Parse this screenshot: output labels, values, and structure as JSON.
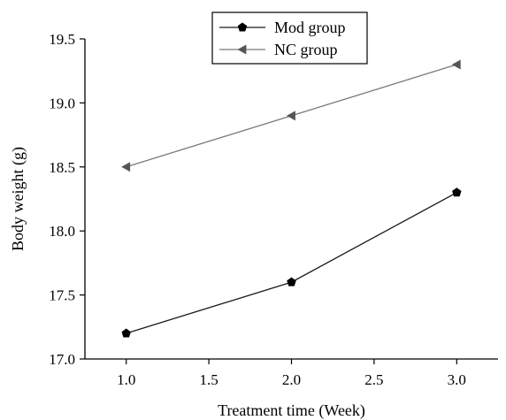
{
  "chart_data": {
    "type": "line",
    "title": "",
    "xlabel": "Treatment time  (Week)",
    "ylabel": "Body weight (g)",
    "x": [
      1.0,
      2.0,
      3.0
    ],
    "xlim": [
      0.75,
      3.25
    ],
    "ylim": [
      17.0,
      19.5
    ],
    "xticks": [
      "1.0",
      "1.5",
      "2.0",
      "2.5",
      "3.0"
    ],
    "yticks": [
      "17.0",
      "17.5",
      "18.0",
      "18.5",
      "19.0",
      "19.5"
    ],
    "grid": false,
    "legend_position": "top-center",
    "series": [
      {
        "name": "Mod group",
        "values": [
          17.2,
          17.6,
          18.3
        ],
        "color": "#000000",
        "marker": "pentagon",
        "line_color": "#1a1a1a"
      },
      {
        "name": "NC group",
        "values": [
          18.5,
          18.9,
          19.3
        ],
        "color": "#555555",
        "marker": "left-triangle",
        "line_color": "#7a7a7a"
      }
    ]
  }
}
